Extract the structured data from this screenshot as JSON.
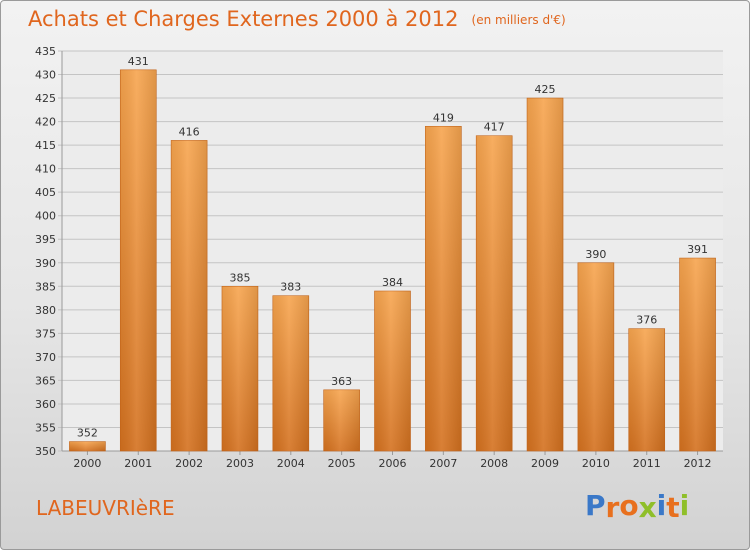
{
  "header": {
    "title": "Achats et Charges Externes 2000 à 2012",
    "unit": "(en milliers d'€)"
  },
  "footer": {
    "commune": "LABEUVRIèRE",
    "logo_letters": [
      "P",
      "r",
      "o",
      "x",
      "i",
      "t",
      "i"
    ]
  },
  "colors": {
    "title": "#e0661e",
    "bar_light": "#f7a54f",
    "bar_dark": "#d4711f",
    "logo": [
      "#3a78c8",
      "#e8701e",
      "#e8701e",
      "#8fbf2a",
      "#3a78c8",
      "#e8701e",
      "#8fbf2a"
    ]
  },
  "chart_data": {
    "type": "bar",
    "categories": [
      "2000",
      "2001",
      "2002",
      "2003",
      "2004",
      "2005",
      "2006",
      "2007",
      "2008",
      "2009",
      "2010",
      "2011",
      "2012"
    ],
    "values": [
      352,
      431,
      416,
      385,
      383,
      363,
      384,
      419,
      417,
      425,
      390,
      376,
      391
    ],
    "ylim": [
      350,
      435
    ],
    "yticks": [
      350,
      355,
      360,
      365,
      370,
      375,
      380,
      385,
      390,
      395,
      400,
      405,
      410,
      415,
      420,
      425,
      430,
      435
    ],
    "grid": true,
    "data_labels": true
  }
}
